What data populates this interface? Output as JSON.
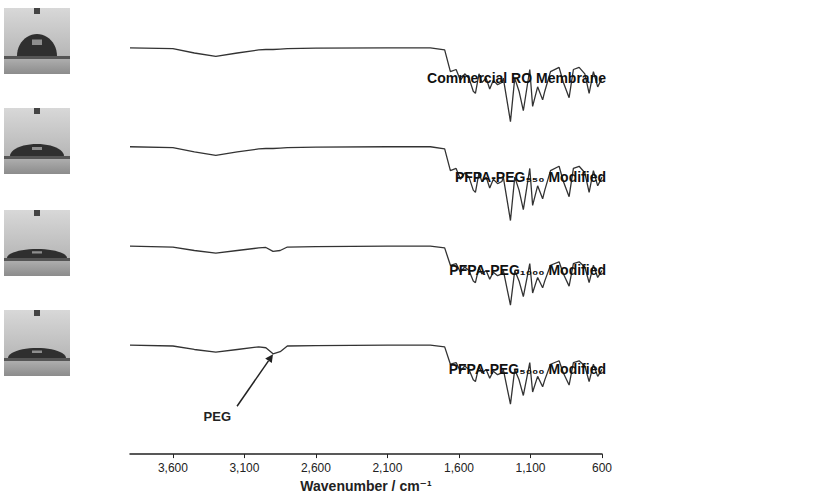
{
  "chart_data": {
    "type": "line",
    "xlabel": "Wavenumber / cm⁻¹",
    "x": [
      3900,
      3600,
      3450,
      3300,
      3150,
      3000,
      2950,
      2900,
      2850,
      2800,
      2600,
      2100,
      1800,
      1700,
      1660,
      1620,
      1590,
      1560,
      1530,
      1500,
      1485,
      1460,
      1440,
      1410,
      1385,
      1360,
      1330,
      1300,
      1290,
      1260,
      1240,
      1210,
      1180,
      1150,
      1105,
      1085,
      1050,
      1015,
      1000,
      960,
      900,
      870,
      830,
      800,
      760,
      720,
      690,
      660,
      630,
      600
    ],
    "series": [
      {
        "name": "Commercial RO Membrane",
        "color": "#333333",
        "values": [
          9.36,
          9.34,
          9.24,
          9.16,
          9.24,
          9.31,
          9.32,
          9.32,
          9.33,
          9.34,
          9.35,
          9.36,
          9.36,
          9.31,
          8.81,
          8.86,
          8.61,
          8.76,
          8.66,
          8.36,
          8.31,
          8.76,
          8.56,
          8.66,
          8.41,
          8.61,
          8.51,
          8.56,
          8.66,
          8.06,
          7.66,
          8.66,
          8.36,
          7.91,
          8.86,
          8.01,
          8.46,
          8.16,
          8.36,
          8.81,
          8.91,
          8.56,
          8.21,
          8.86,
          8.91,
          8.76,
          8.31,
          8.81,
          8.46,
          8.66
        ]
      },
      {
        "name": "PFPA-PEG₅₅₀ Modified",
        "color": "#333333",
        "values": [
          7.08,
          7.06,
          6.96,
          6.88,
          6.96,
          7.03,
          7.04,
          7.04,
          7.05,
          7.06,
          7.07,
          7.08,
          7.08,
          7.03,
          6.53,
          6.58,
          6.33,
          6.48,
          6.38,
          6.08,
          6.03,
          6.48,
          6.28,
          6.38,
          6.13,
          6.33,
          6.23,
          6.28,
          6.38,
          5.78,
          5.38,
          6.38,
          6.08,
          5.63,
          6.58,
          5.73,
          6.18,
          5.88,
          6.08,
          6.53,
          6.63,
          6.28,
          5.93,
          6.58,
          6.63,
          6.48,
          6.03,
          6.53,
          6.18,
          6.38
        ]
      },
      {
        "name": "PFPA-PEG₁₀₀₀ Modified",
        "color": "#333333",
        "values": [
          4.79,
          4.77,
          4.69,
          4.63,
          4.69,
          4.75,
          4.76,
          4.67,
          4.69,
          4.77,
          4.78,
          4.79,
          4.79,
          4.75,
          4.35,
          4.39,
          4.19,
          4.31,
          4.23,
          3.99,
          3.95,
          4.31,
          4.15,
          4.23,
          4.03,
          4.19,
          4.11,
          4.15,
          4.23,
          3.75,
          3.43,
          4.23,
          3.99,
          3.63,
          4.39,
          3.71,
          4.07,
          3.83,
          3.99,
          4.35,
          4.43,
          4.15,
          3.87,
          4.39,
          4.43,
          4.31,
          3.95,
          4.35,
          4.07,
          4.23
        ]
      },
      {
        "name": "PFPA-PEG₅₀₀₀ Modified",
        "color": "#333333",
        "values": [
          2.51,
          2.49,
          2.41,
          2.35,
          2.41,
          2.47,
          2.45,
          2.31,
          2.36,
          2.49,
          2.5,
          2.51,
          2.51,
          2.47,
          2.07,
          2.11,
          1.91,
          2.03,
          1.95,
          1.71,
          1.67,
          2.03,
          1.87,
          1.95,
          1.75,
          1.91,
          1.83,
          1.87,
          1.95,
          1.47,
          1.15,
          1.95,
          1.71,
          1.35,
          2.11,
          1.43,
          1.79,
          1.55,
          1.71,
          2.07,
          2.15,
          1.87,
          1.59,
          2.11,
          2.15,
          2.03,
          1.67,
          2.07,
          1.79,
          1.95
        ]
      }
    ],
    "xlim": [
      3900,
      600
    ],
    "xticks": [
      3600,
      3100,
      2600,
      2100,
      1600,
      1100,
      600
    ],
    "ylim": [
      0,
      10
    ],
    "tick_labels": "x",
    "grid": false,
    "annotations": [
      {
        "text": "PEG",
        "x": 2900,
        "y": 2.3
      }
    ]
  }
}
